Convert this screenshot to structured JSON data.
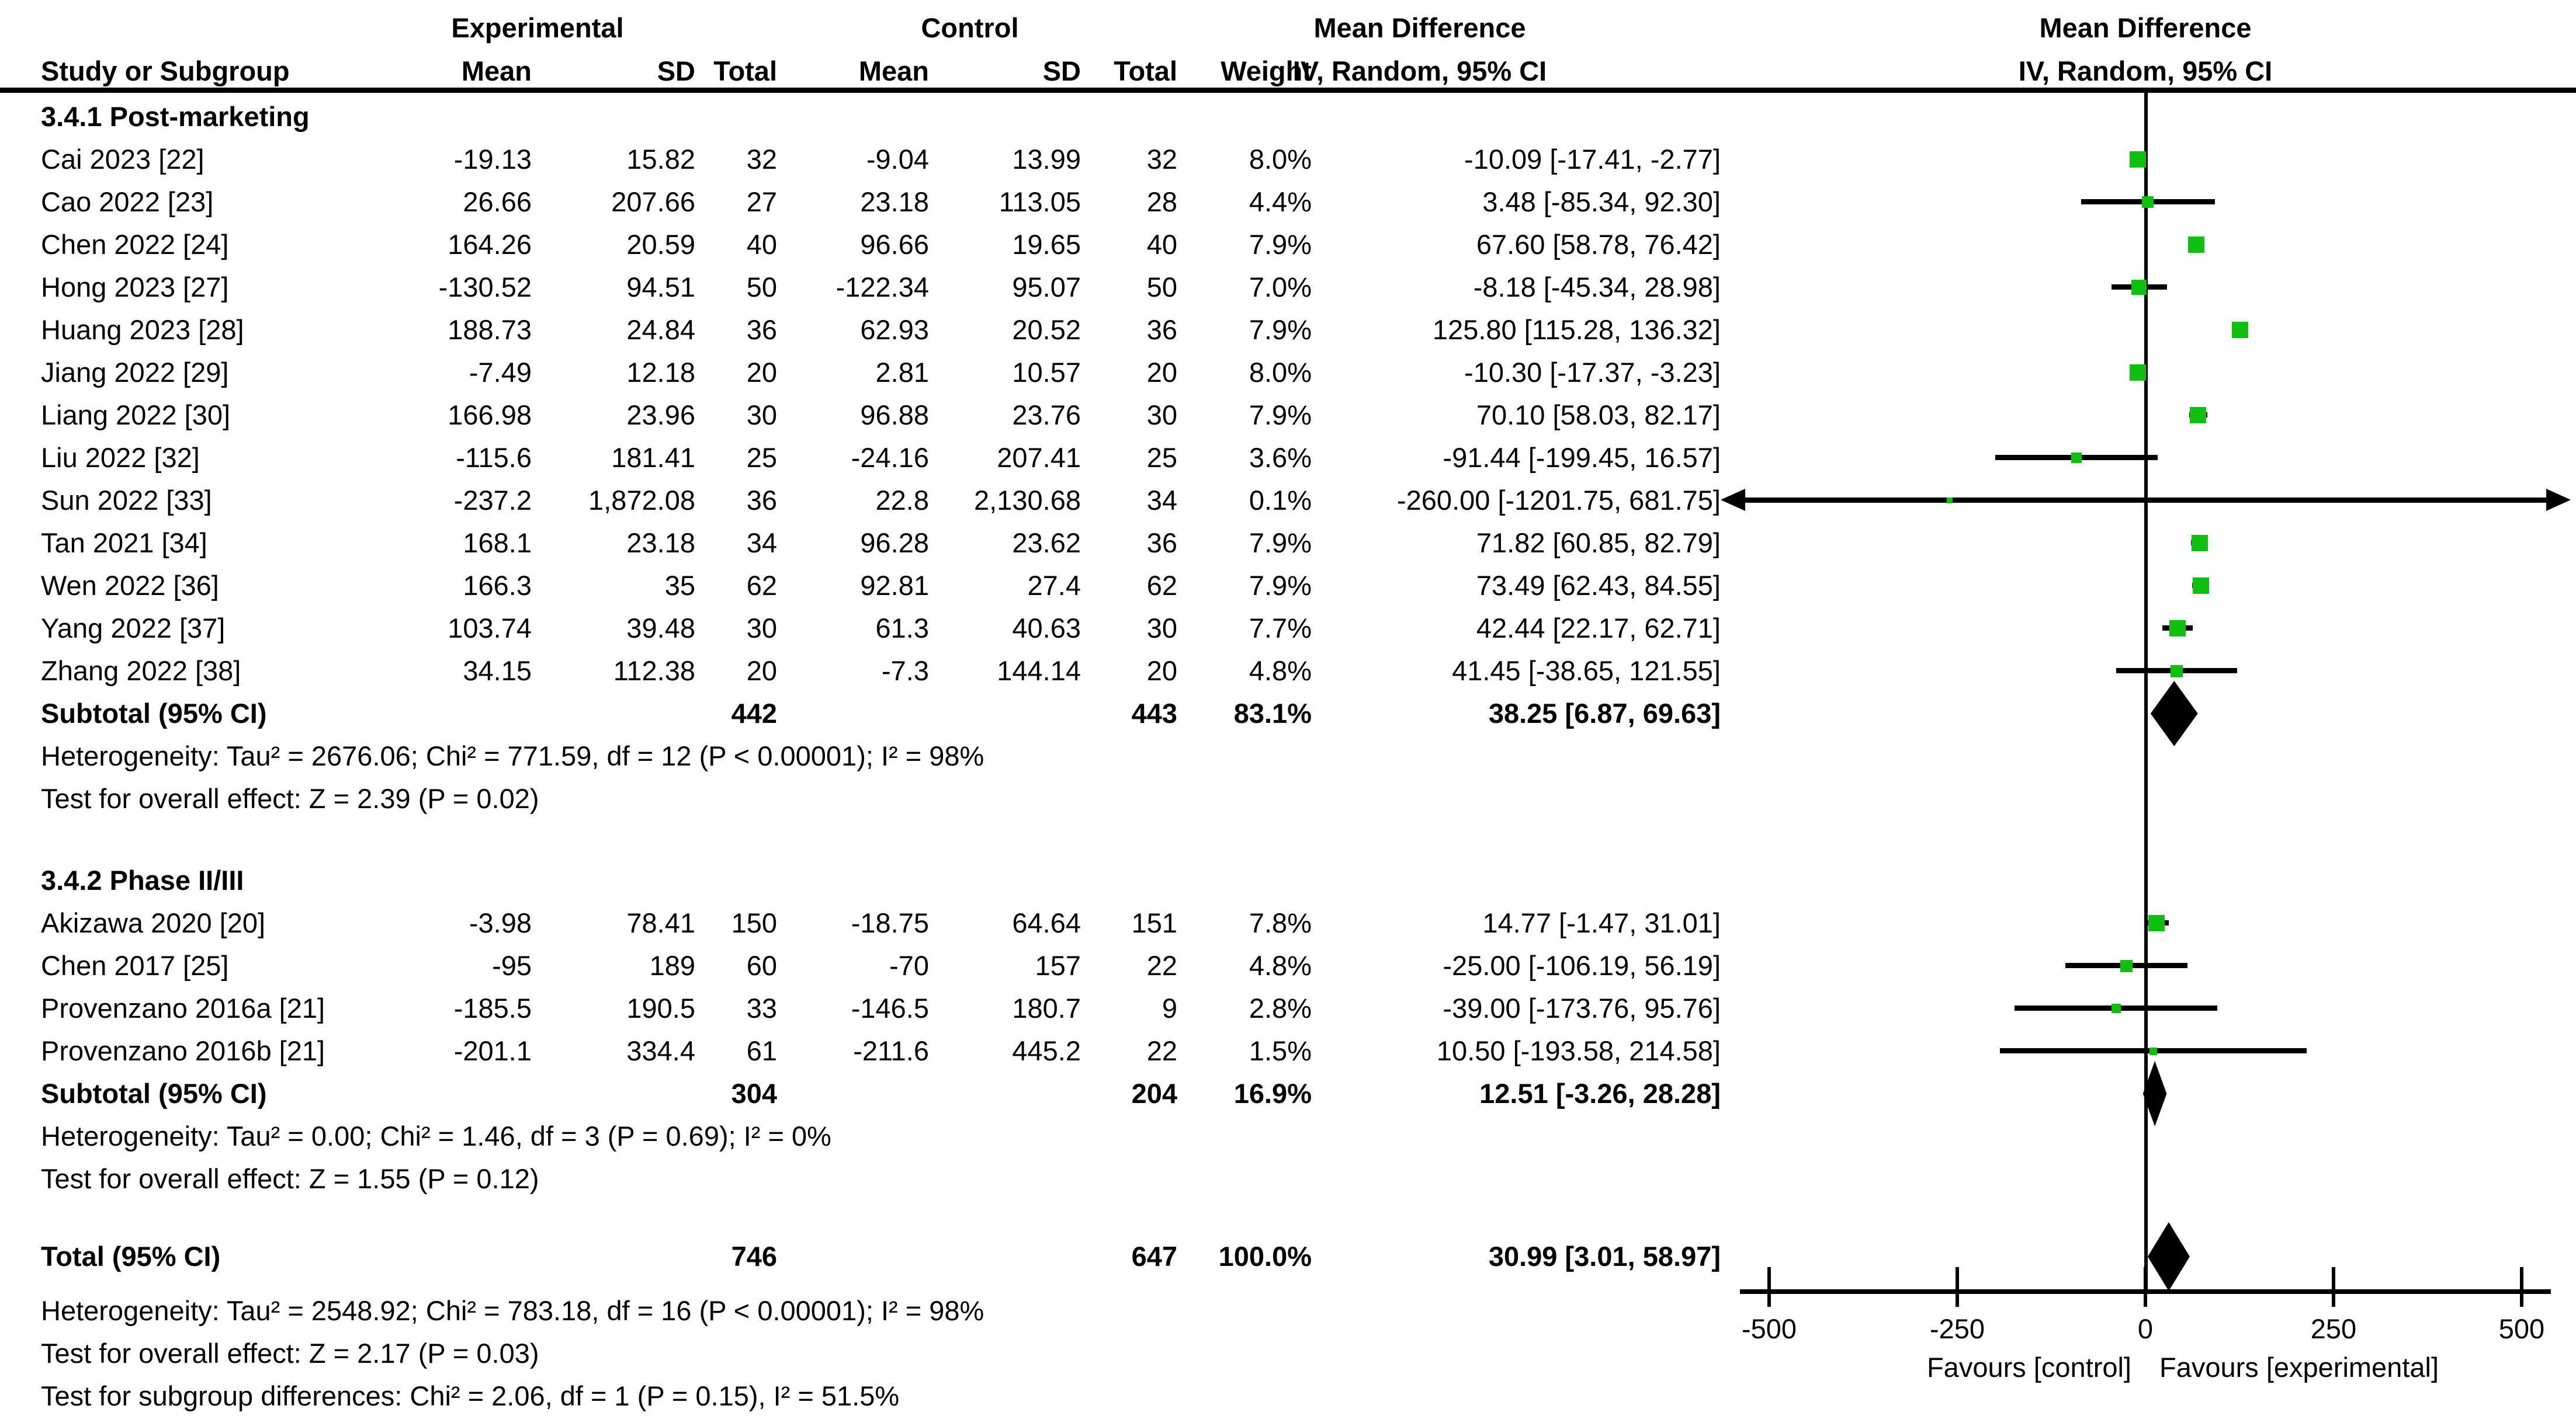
{
  "header": {
    "study_col": "Study or Subgroup",
    "exp_label": "Experimental",
    "ctrl_label": "Control",
    "md_label_left": "Mean Difference",
    "md_label_right": "Mean Difference",
    "iv_label_left": "IV, Random, 95% CI",
    "iv_label_right": "IV, Random, 95% CI",
    "sub_cols": [
      "Mean",
      "SD",
      "Total",
      "Mean",
      "SD",
      "Total",
      "Weight"
    ]
  },
  "colors": {
    "marker_green": "#10c010",
    "line_black": "#000000"
  },
  "chart_data": {
    "type": "forest",
    "effect_measure": "Mean Difference",
    "model": "IV, Random, 95% CI",
    "xlim": [
      -500,
      500
    ],
    "ticks": [
      {
        "v": -500,
        "label": "-500"
      },
      {
        "v": -250,
        "label": "-250"
      },
      {
        "v": 0,
        "label": "0"
      },
      {
        "v": 250,
        "label": "250"
      },
      {
        "v": 500,
        "label": "500"
      }
    ],
    "favours_left": "Favours [control]",
    "favours_right": "Favours [experimental]",
    "groups": [
      {
        "label": "3.4.1 Post-marketing",
        "rows": [
          {
            "study": "Cai 2023 [22]",
            "e_mean": "-19.13",
            "e_sd": "15.82",
            "e_total": "32",
            "c_mean": "-9.04",
            "c_sd": "13.99",
            "c_total": "32",
            "weight": "8.0%",
            "ci": "-10.09 [-17.41, -2.77]",
            "md": -10.09,
            "lo": -17.41,
            "hi": -2.77,
            "w": 8.0
          },
          {
            "study": "Cao 2022 [23]",
            "e_mean": "26.66",
            "e_sd": "207.66",
            "e_total": "27",
            "c_mean": "23.18",
            "c_sd": "113.05",
            "c_total": "28",
            "weight": "4.4%",
            "ci": "3.48 [-85.34, 92.30]",
            "md": 3.48,
            "lo": -85.34,
            "hi": 92.3,
            "w": 4.4
          },
          {
            "study": "Chen 2022 [24]",
            "e_mean": "164.26",
            "e_sd": "20.59",
            "e_total": "40",
            "c_mean": "96.66",
            "c_sd": "19.65",
            "c_total": "40",
            "weight": "7.9%",
            "ci": "67.60 [58.78, 76.42]",
            "md": 67.6,
            "lo": 58.78,
            "hi": 76.42,
            "w": 7.9
          },
          {
            "study": "Hong 2023 [27]",
            "e_mean": "-130.52",
            "e_sd": "94.51",
            "e_total": "50",
            "c_mean": "-122.34",
            "c_sd": "95.07",
            "c_total": "50",
            "weight": "7.0%",
            "ci": "-8.18 [-45.34, 28.98]",
            "md": -8.18,
            "lo": -45.34,
            "hi": 28.98,
            "w": 7.0
          },
          {
            "study": "Huang 2023 [28]",
            "e_mean": "188.73",
            "e_sd": "24.84",
            "e_total": "36",
            "c_mean": "62.93",
            "c_sd": "20.52",
            "c_total": "36",
            "weight": "7.9%",
            "ci": "125.80 [115.28, 136.32]",
            "md": 125.8,
            "lo": 115.28,
            "hi": 136.32,
            "w": 7.9
          },
          {
            "study": "Jiang 2022 [29]",
            "e_mean": "-7.49",
            "e_sd": "12.18",
            "e_total": "20",
            "c_mean": "2.81",
            "c_sd": "10.57",
            "c_total": "20",
            "weight": "8.0%",
            "ci": "-10.30 [-17.37, -3.23]",
            "md": -10.3,
            "lo": -17.37,
            "hi": -3.23,
            "w": 8.0
          },
          {
            "study": "Liang 2022 [30]",
            "e_mean": "166.98",
            "e_sd": "23.96",
            "e_total": "30",
            "c_mean": "96.88",
            "c_sd": "23.76",
            "c_total": "30",
            "weight": "7.9%",
            "ci": "70.10 [58.03, 82.17]",
            "md": 70.1,
            "lo": 58.03,
            "hi": 82.17,
            "w": 7.9
          },
          {
            "study": "Liu 2022 [32]",
            "e_mean": "-115.6",
            "e_sd": "181.41",
            "e_total": "25",
            "c_mean": "-24.16",
            "c_sd": "207.41",
            "c_total": "25",
            "weight": "3.6%",
            "ci": "-91.44 [-199.45, 16.57]",
            "md": -91.44,
            "lo": -199.45,
            "hi": 16.57,
            "w": 3.6
          },
          {
            "study": "Sun 2022 [33]",
            "e_mean": "-237.2",
            "e_sd": "1,872.08",
            "e_total": "36",
            "c_mean": "22.8",
            "c_sd": "2,130.68",
            "c_total": "34",
            "weight": "0.1%",
            "ci": "-260.00 [-1201.75, 681.75]",
            "md": -260.0,
            "lo": -1201.75,
            "hi": 681.75,
            "w": 0.1
          },
          {
            "study": "Tan 2021 [34]",
            "e_mean": "168.1",
            "e_sd": "23.18",
            "e_total": "34",
            "c_mean": "96.28",
            "c_sd": "23.62",
            "c_total": "36",
            "weight": "7.9%",
            "ci": "71.82 [60.85, 82.79]",
            "md": 71.82,
            "lo": 60.85,
            "hi": 82.79,
            "w": 7.9
          },
          {
            "study": "Wen 2022 [36]",
            "e_mean": "166.3",
            "e_sd": "35",
            "e_total": "62",
            "c_mean": "92.81",
            "c_sd": "27.4",
            "c_total": "62",
            "weight": "7.9%",
            "ci": "73.49 [62.43, 84.55]",
            "md": 73.49,
            "lo": 62.43,
            "hi": 84.55,
            "w": 7.9
          },
          {
            "study": "Yang 2022 [37]",
            "e_mean": "103.74",
            "e_sd": "39.48",
            "e_total": "30",
            "c_mean": "61.3",
            "c_sd": "40.63",
            "c_total": "30",
            "weight": "7.7%",
            "ci": "42.44 [22.17, 62.71]",
            "md": 42.44,
            "lo": 22.17,
            "hi": 62.71,
            "w": 7.7
          },
          {
            "study": "Zhang 2022 [38]",
            "e_mean": "34.15",
            "e_sd": "112.38",
            "e_total": "20",
            "c_mean": "-7.3",
            "c_sd": "144.14",
            "c_total": "20",
            "weight": "4.8%",
            "ci": "41.45 [-38.65, 121.55]",
            "md": 41.45,
            "lo": -38.65,
            "hi": 121.55,
            "w": 4.8
          }
        ],
        "subtotal": {
          "label": "Subtotal (95% CI)",
          "e_total": "442",
          "c_total": "443",
          "weight": "83.1%",
          "ci": "38.25 [6.87, 69.63]",
          "md": 38.25,
          "lo": 6.87,
          "hi": 69.63
        },
        "heterogeneity": "Heterogeneity: Tau² = 2676.06; Chi² = 771.59, df = 12 (P < 0.00001); I² = 98%",
        "overall": "Test for overall effect: Z = 2.39 (P = 0.02)"
      },
      {
        "label": "3.4.2 Phase II/III",
        "rows": [
          {
            "study": "Akizawa 2020 [20]",
            "e_mean": "-3.98",
            "e_sd": "78.41",
            "e_total": "150",
            "c_mean": "-18.75",
            "c_sd": "64.64",
            "c_total": "151",
            "weight": "7.8%",
            "ci": "14.77 [-1.47, 31.01]",
            "md": 14.77,
            "lo": -1.47,
            "hi": 31.01,
            "w": 7.8
          },
          {
            "study": "Chen 2017 [25]",
            "e_mean": "-95",
            "e_sd": "189",
            "e_total": "60",
            "c_mean": "-70",
            "c_sd": "157",
            "c_total": "22",
            "weight": "4.8%",
            "ci": "-25.00 [-106.19, 56.19]",
            "md": -25.0,
            "lo": -106.19,
            "hi": 56.19,
            "w": 4.8
          },
          {
            "study": "Provenzano 2016a [21]",
            "e_mean": "-185.5",
            "e_sd": "190.5",
            "e_total": "33",
            "c_mean": "-146.5",
            "c_sd": "180.7",
            "c_total": "9",
            "weight": "2.8%",
            "ci": "-39.00 [-173.76, 95.76]",
            "md": -39.0,
            "lo": -173.76,
            "hi": 95.76,
            "w": 2.8
          },
          {
            "study": "Provenzano 2016b [21]",
            "e_mean": "-201.1",
            "e_sd": "334.4",
            "e_total": "61",
            "c_mean": "-211.6",
            "c_sd": "445.2",
            "c_total": "22",
            "weight": "1.5%",
            "ci": "10.50 [-193.58, 214.58]",
            "md": 10.5,
            "lo": -193.58,
            "hi": 214.58,
            "w": 1.5
          }
        ],
        "subtotal": {
          "label": "Subtotal (95% CI)",
          "e_total": "304",
          "c_total": "204",
          "weight": "16.9%",
          "ci": "12.51 [-3.26, 28.28]",
          "md": 12.51,
          "lo": -3.26,
          "hi": 28.28
        },
        "heterogeneity": "Heterogeneity: Tau² = 0.00; Chi² = 1.46, df = 3 (P = 0.69); I² = 0%",
        "overall": "Test for overall effect: Z = 1.55 (P = 0.12)"
      }
    ],
    "total": {
      "label": "Total (95% CI)",
      "e_total": "746",
      "c_total": "647",
      "weight": "100.0%",
      "ci": "30.99 [3.01, 58.97]",
      "md": 30.99,
      "lo": 3.01,
      "hi": 58.97,
      "heterogeneity": "Heterogeneity: Tau² = 2548.92; Chi² = 783.18, df = 16 (P < 0.00001); I² = 98%",
      "overall": "Test for overall effect: Z = 2.17 (P = 0.03)",
      "subgroup_diff": "Test for subgroup differences: Chi² = 2.06, df = 1 (P = 0.15), I² = 51.5%"
    }
  }
}
